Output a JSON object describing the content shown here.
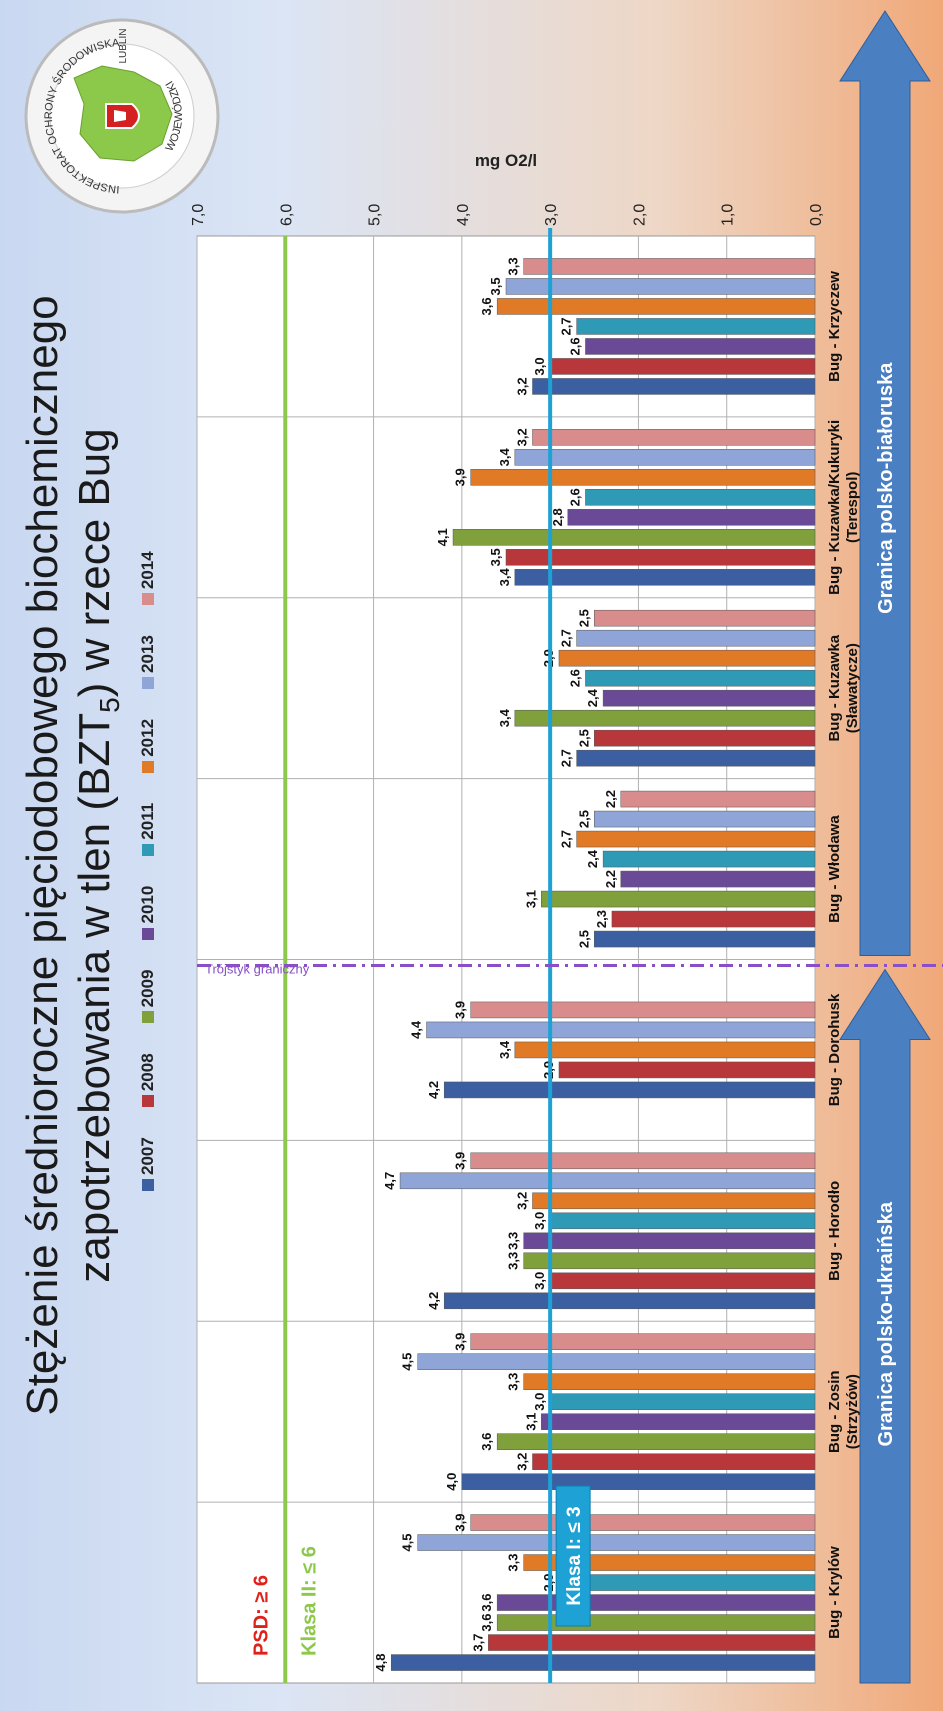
{
  "title_line1": "Stężenie średnioroczne pięciodobowego biochemicznego",
  "title_line2_pre": "zapotrzebowania w tlen (BZT",
  "title_line2_sub": "5",
  "title_line2_post": ") w rzece Bug",
  "logo": {
    "text_top": "INSPEKTORAT OCHRONY ŚRODOWISKA",
    "text_bottom": "WOJEWÓDZKI",
    "text_right": "LUBLIN"
  },
  "threshold_labels": {
    "psd": "PSD: ≥ 6",
    "klasa2": "Klasa II: ≤ 6",
    "klasa1": "Klasa I: ≤ 3",
    "trojstyk": "Trójstyk graniczny"
  },
  "arrows": {
    "left": "Granica polsko-ukraińska",
    "right": "Granica polsko-białoruska"
  },
  "colors": {
    "2007": "#3b5fa0",
    "2008": "#b8373a",
    "2009": "#7fa03a",
    "2010": "#6a4a96",
    "2011": "#2f9ab5",
    "2012": "#e07a26",
    "2013": "#8fa5d8",
    "2014": "#d98c8c",
    "psd": "#e0201a",
    "klasa2": "#8cc84a",
    "klasa1": "#1ea2d6",
    "trojstyk": "#8a4fc6",
    "arrow": "#4a7fc1"
  },
  "chart_data": {
    "type": "bar",
    "title": "Stężenie średnioroczne pięciodobowego biochemicznego zapotrzebowania w tlen (BZT5) w rzece Bug",
    "ylabel": "mg O2/l",
    "ylim": [
      0,
      7
    ],
    "yticks": [
      "0,0",
      "1,0",
      "2,0",
      "3,0",
      "4,0",
      "5,0",
      "6,0",
      "7,0"
    ],
    "series_names": [
      "2007",
      "2008",
      "2009",
      "2010",
      "2011",
      "2012",
      "2013",
      "2014"
    ],
    "thresholds": [
      {
        "name": "PSD: ≥ 6",
        "value": 6
      },
      {
        "name": "Klasa II: ≤ 6",
        "value": 6
      },
      {
        "name": "Klasa I: ≤ 3",
        "value": 3
      }
    ],
    "categories": [
      {
        "label": "Bug - Krylów",
        "sublabel": "",
        "bars": [
          [
            "2007",
            4.8,
            "4,8"
          ],
          [
            "2008",
            3.7,
            "3,7"
          ],
          [
            "2009",
            3.6,
            "3,6"
          ],
          [
            "2010",
            3.6,
            "3,6"
          ],
          [
            "2011",
            2.9,
            "2,9"
          ],
          [
            "2012",
            3.3,
            "3,3"
          ],
          [
            "2013",
            4.5,
            "4,5"
          ],
          [
            "2014",
            3.9,
            "3,9"
          ]
        ]
      },
      {
        "label": "Bug - Zosin",
        "sublabel": "(Strzyżów)",
        "bars": [
          [
            "2007",
            4.0,
            "4,0"
          ],
          [
            "2008",
            3.2,
            "3,2"
          ],
          [
            "2009",
            3.6,
            "3,6"
          ],
          [
            "2010",
            3.1,
            "3,1"
          ],
          [
            "2011",
            3.0,
            "3,0"
          ],
          [
            "2012",
            3.3,
            "3,3"
          ],
          [
            "2013",
            4.5,
            "4,5"
          ],
          [
            "2014",
            3.9,
            "3,9"
          ]
        ]
      },
      {
        "label": "Bug - Horodło",
        "sublabel": "",
        "bars": [
          [
            "2007",
            4.2,
            "4,2"
          ],
          [
            "2008",
            3.0,
            "3,0"
          ],
          [
            "2009",
            3.3,
            "3,3"
          ],
          [
            "2010",
            3.3,
            "3,3"
          ],
          [
            "2011",
            3.0,
            "3,0"
          ],
          [
            "2012",
            3.2,
            "3,2"
          ],
          [
            "2013",
            4.7,
            "4,7"
          ],
          [
            "2014",
            3.9,
            "3,9"
          ]
        ]
      },
      {
        "label": "Bug - Dorohusk",
        "sublabel": "",
        "bars": [
          [
            "2007",
            4.2,
            "4,2"
          ],
          [
            "2008",
            2.9,
            "2,9"
          ],
          [
            "2012",
            3.4,
            "3,4"
          ],
          [
            "2013",
            4.4,
            "4,4"
          ],
          [
            "2014",
            3.9,
            "3,9"
          ]
        ]
      },
      {
        "label": "Bug - Włodawa",
        "sublabel": "",
        "bars": [
          [
            "2007",
            2.5,
            "2,5"
          ],
          [
            "2008",
            2.3,
            "2,3"
          ],
          [
            "2009",
            3.1,
            "3,1"
          ],
          [
            "2010",
            2.2,
            "2,2"
          ],
          [
            "2011",
            2.4,
            "2,4"
          ],
          [
            "2012",
            2.7,
            "2,7"
          ],
          [
            "2013",
            2.5,
            "2,5"
          ],
          [
            "2014",
            2.2,
            "2,2"
          ]
        ]
      },
      {
        "label": "Bug - Kuzawka",
        "sublabel": "(Sławatycze)",
        "bars": [
          [
            "2007",
            2.7,
            "2,7"
          ],
          [
            "2008",
            2.5,
            "2,5"
          ],
          [
            "2009",
            3.4,
            "3,4"
          ],
          [
            "2010",
            2.4,
            "2,4"
          ],
          [
            "2011",
            2.6,
            "2,6"
          ],
          [
            "2012",
            2.9,
            "2,9"
          ],
          [
            "2013",
            2.7,
            "2,7"
          ],
          [
            "2014",
            2.5,
            "2,5"
          ]
        ]
      },
      {
        "label": "Bug - Kuzawka/Kukuryki",
        "sublabel": "(Terespol)",
        "bars": [
          [
            "2007",
            3.4,
            "3,4"
          ],
          [
            "2008",
            3.5,
            "3,5"
          ],
          [
            "2009",
            4.1,
            "4,1"
          ],
          [
            "2010",
            2.8,
            "2,8"
          ],
          [
            "2011",
            2.6,
            "2,6"
          ],
          [
            "2012",
            3.9,
            "3,9"
          ],
          [
            "2013",
            3.4,
            "3,4"
          ],
          [
            "2014",
            3.2,
            "3,2"
          ]
        ]
      },
      {
        "label": "Bug - Krzyczew",
        "sublabel": "",
        "bars": [
          [
            "2007",
            3.2,
            "3,2"
          ],
          [
            "2008",
            3.0,
            "3,0"
          ],
          [
            "2010",
            2.6,
            "2,6"
          ],
          [
            "2011",
            2.7,
            "2,7"
          ],
          [
            "2012",
            3.6,
            "3,6"
          ],
          [
            "2013",
            3.5,
            "3,5"
          ],
          [
            "2014",
            3.3,
            "3,3"
          ]
        ]
      }
    ]
  }
}
